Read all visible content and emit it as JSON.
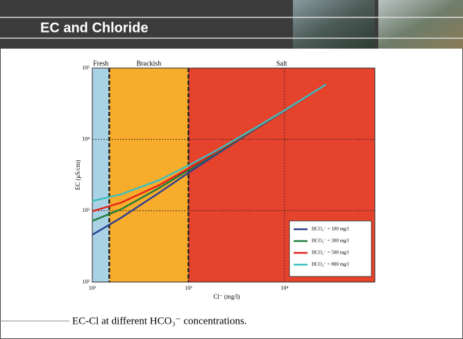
{
  "slide": {
    "title": "EC and Chloride",
    "caption": "EC-Cl at different HCO₃⁻ concentrations."
  },
  "chart_data": {
    "type": "line",
    "log_x": true,
    "log_y": true,
    "grid": true,
    "legend": "lower right",
    "x_label": "Cl⁻ (mg/l)",
    "y_label": "EC (μS/cm)",
    "xlim": [
      100,
      87000
    ],
    "ylim": [
      100,
      100000
    ],
    "xticks": [
      {
        "value": 100,
        "label": "10²"
      },
      {
        "value": 1000,
        "label": "10³"
      },
      {
        "value": 10000,
        "label": "10⁴"
      }
    ],
    "yticks": [
      {
        "value": 100,
        "label": "10²"
      },
      {
        "value": 1000,
        "label": "10³"
      },
      {
        "value": 10000,
        "label": "10⁴"
      },
      {
        "value": 100000,
        "label": "10⁵"
      }
    ],
    "regions": [
      {
        "name": "Fresh",
        "start": 100,
        "color": "#a9d3e5"
      },
      {
        "name": "Brackish",
        "start": 150,
        "color": "#f8ac2c"
      },
      {
        "name": "Salt",
        "start": 1000,
        "color": "#e6432d"
      }
    ],
    "x": [
      100,
      200,
      500,
      1000,
      2000,
      5000,
      10000,
      27000
    ],
    "series": [
      {
        "name": "HCO₃⁻ = 100 mg/l",
        "color": "#2b3f8f",
        "values": [
          460,
          800,
          1800,
          3400,
          6300,
          14000,
          25000,
          59000
        ]
      },
      {
        "name": "HCO₃⁻ = 300 mg/l",
        "color": "#1e7a3a",
        "values": [
          720,
          1050,
          2100,
          3700,
          6600,
          14200,
          25200,
          59000
        ]
      },
      {
        "name": "HCO₃⁻ = 500 mg/l",
        "color": "#e3201c",
        "values": [
          980,
          1300,
          2300,
          3900,
          6800,
          14400,
          25300,
          59000
        ]
      },
      {
        "name": "HCO₃⁻ = 800 mg/l",
        "color": "#3bbfbf",
        "values": [
          1370,
          1700,
          2700,
          4300,
          7100,
          14600,
          25500,
          59000
        ]
      }
    ]
  }
}
